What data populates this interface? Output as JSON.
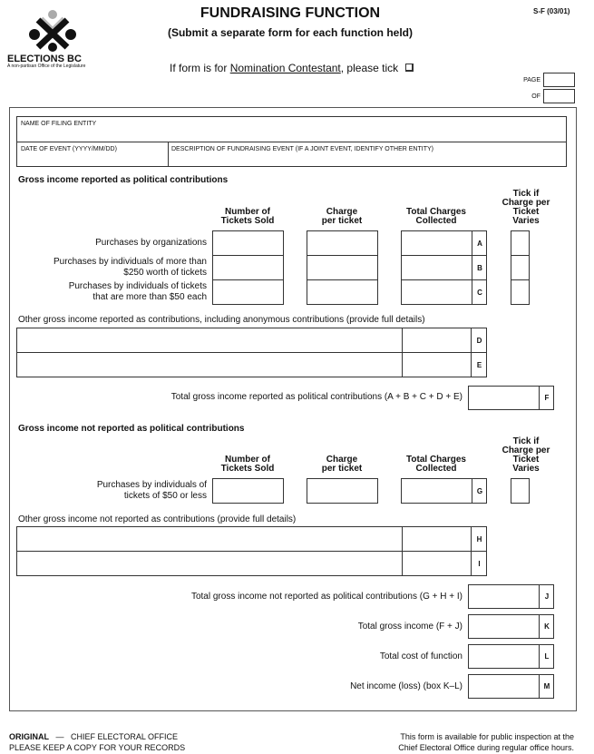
{
  "header": {
    "title": "FUNDRAISING FUNCTION",
    "subtitle": "(Submit a separate form for each function held)",
    "form_code": "S-F (03/01)",
    "logo_text": "ELECTIONS BC",
    "logo_tagline": "A non-partisan Office of the Legislature",
    "nomination_prefix": "If form is for ",
    "nomination_link": "Nomination Contestant",
    "nomination_suffix": ", please tick",
    "page_label": "PAGE",
    "of_label": "OF"
  },
  "entity": {
    "name_label": "NAME OF FILING ENTITY",
    "date_label": "DATE OF EVENT (YYYY/MM/DD)",
    "description_label": "DESCRIPTION OF FUNDRAISING EVENT (IF A JOINT EVENT, IDENTIFY OTHER ENTITY)"
  },
  "columns": {
    "tickets_1": "Number of",
    "tickets_2": "Tickets Sold",
    "charge_1": "Charge",
    "charge_2": "per ticket",
    "total_1": "Total Charges",
    "total_2": "Collected",
    "tick_1": "Tick if",
    "tick_2": "Charge per",
    "tick_3": "Ticket",
    "tick_4": "Varies"
  },
  "reported": {
    "heading": "Gross income reported as political contributions",
    "rows": [
      {
        "line1": "Purchases by organizations",
        "line2": "",
        "letter": "A"
      },
      {
        "line1": "Purchases by individuals of more than",
        "line2": "$250 worth of tickets",
        "letter": "B"
      },
      {
        "line1": "Purchases by individuals of tickets",
        "line2": "that are more than $50 each",
        "letter": "C"
      }
    ],
    "other_label": "Other gross income reported as contributions, including anonymous contributions (provide full details)",
    "other_letters": [
      "D",
      "E"
    ],
    "total_label": "Total gross income reported as political contributions (A + B + C + D + E)",
    "total_letter": "F"
  },
  "not_reported": {
    "heading": "Gross income not reported as political contributions",
    "row": {
      "line1": "Purchases by individuals of",
      "line2": "tickets of $50 or less",
      "letter": "G"
    },
    "other_label": "Other gross income not reported as contributions (provide full details)",
    "other_letters": [
      "H",
      "I"
    ]
  },
  "totals": [
    {
      "label": "Total gross income not reported as political contributions (G + H + I)",
      "letter": "J"
    },
    {
      "label": "Total gross income (F + J)",
      "letter": "K"
    },
    {
      "label": "Total cost of function",
      "letter": "L"
    },
    {
      "label": "Net income (loss) (box K–L)",
      "letter": "M"
    }
  ],
  "footer": {
    "original": "ORIGINAL",
    "dash": "—",
    "office": "CHIEF ELECTORAL OFFICE",
    "keep_copy": "PLEASE KEEP A COPY FOR YOUR RECORDS",
    "public_1": "This form is available for public inspection at the",
    "public_2": "Chief Electoral Office during regular office hours."
  }
}
